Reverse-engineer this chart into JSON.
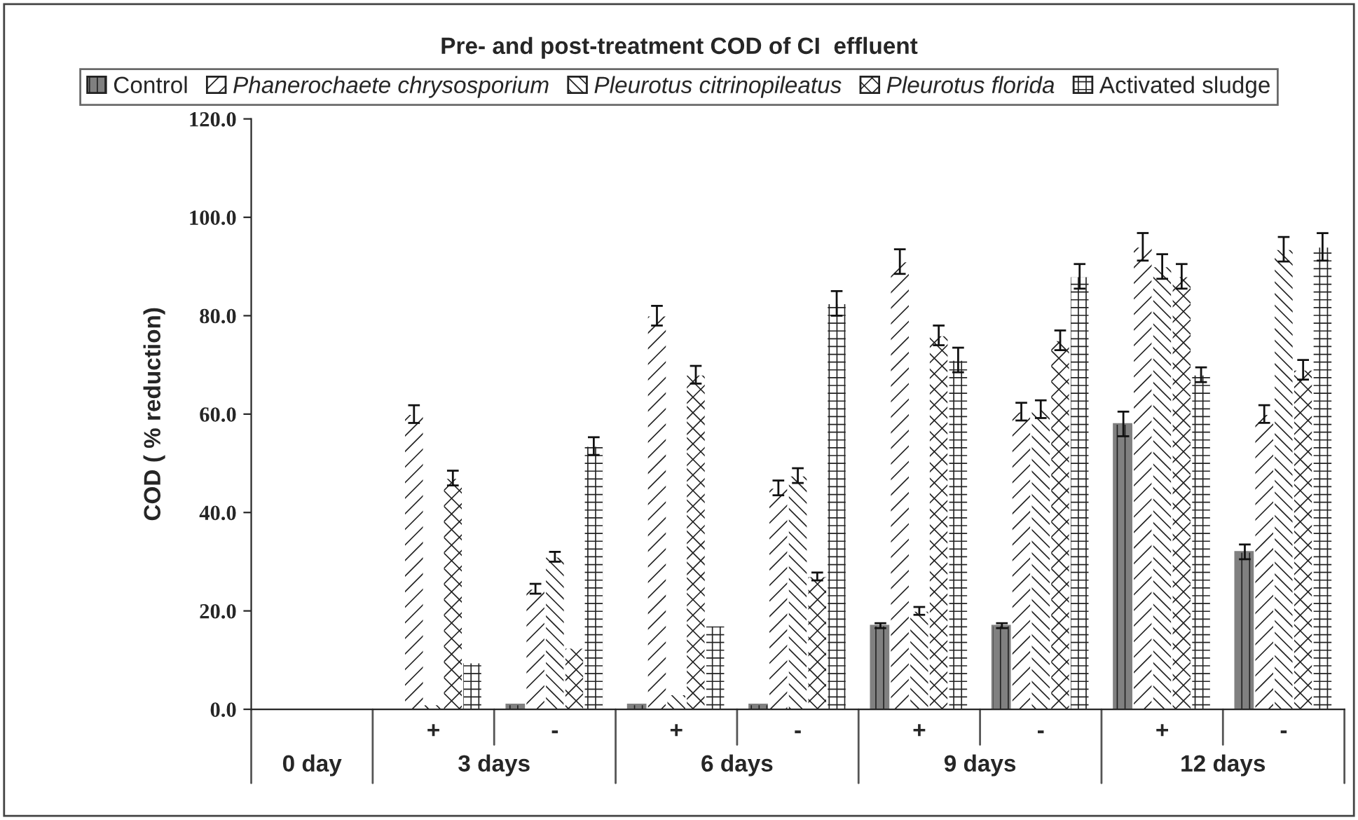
{
  "chart_data": {
    "type": "bar",
    "title": "Pre- and post-treatment COD of CI  effluent",
    "ylabel": "COD ( % reduction)",
    "categories": [
      null,
      "+",
      "-",
      "+",
      "-",
      "+",
      "-",
      "+",
      "-"
    ],
    "annotations": [
      "0 day",
      "3 days",
      "6 days",
      "9 days",
      "12 days"
    ],
    "series": [
      {
        "name": "Control",
        "color": "#808080",
        "values": [
          null,
          null,
          1,
          1,
          1,
          17,
          17,
          58,
          32
        ],
        "errors": [
          null,
          null,
          null,
          null,
          null,
          0.5,
          0.5,
          2.5,
          1.5
        ]
      },
      {
        "name": "Phanerochaete chrysosporium",
        "color": "#ffffff",
        "values": [
          null,
          60,
          24.5,
          80,
          45,
          91,
          60.5,
          94,
          60
        ],
        "errors": [
          null,
          1.8,
          1,
          2,
          1.5,
          2.5,
          1.8,
          2.8,
          1.8
        ]
      },
      {
        "name": "Pleurotus citrinopileatus",
        "color": "#ffffff",
        "values": [
          null,
          1,
          31,
          3,
          47.5,
          20,
          61,
          90,
          93.5
        ],
        "errors": [
          null,
          null,
          1,
          null,
          1.5,
          0.8,
          1.8,
          2.5,
          2.5
        ]
      },
      {
        "name": "Pleurotus florida",
        "color": "#ffffff",
        "values": [
          null,
          47,
          12.5,
          68,
          27,
          76,
          75,
          88,
          69
        ],
        "errors": [
          null,
          1.5,
          null,
          1.8,
          0.8,
          2,
          2,
          2.5,
          2
        ]
      },
      {
        "name": "Activated sludge",
        "color": "#ffffff",
        "values": [
          null,
          9.5,
          53.5,
          17,
          82.5,
          71,
          88,
          68,
          94
        ],
        "errors": [
          null,
          null,
          1.8,
          null,
          2.5,
          2.5,
          2.5,
          1.5,
          2.8
        ]
      }
    ],
    "ylim": [
      0,
      120
    ],
    "yticks": [
      {
        "value": 0,
        "label": "0.0"
      },
      {
        "value": 20,
        "label": "20.0"
      },
      {
        "value": 40,
        "label": "40.0"
      },
      {
        "value": 60,
        "label": "60.0"
      },
      {
        "value": 80,
        "label": "80.0"
      },
      {
        "value": 100,
        "label": "100.0"
      },
      {
        "value": 120,
        "label": "120.0"
      }
    ],
    "grid": false,
    "legend": "top"
  }
}
